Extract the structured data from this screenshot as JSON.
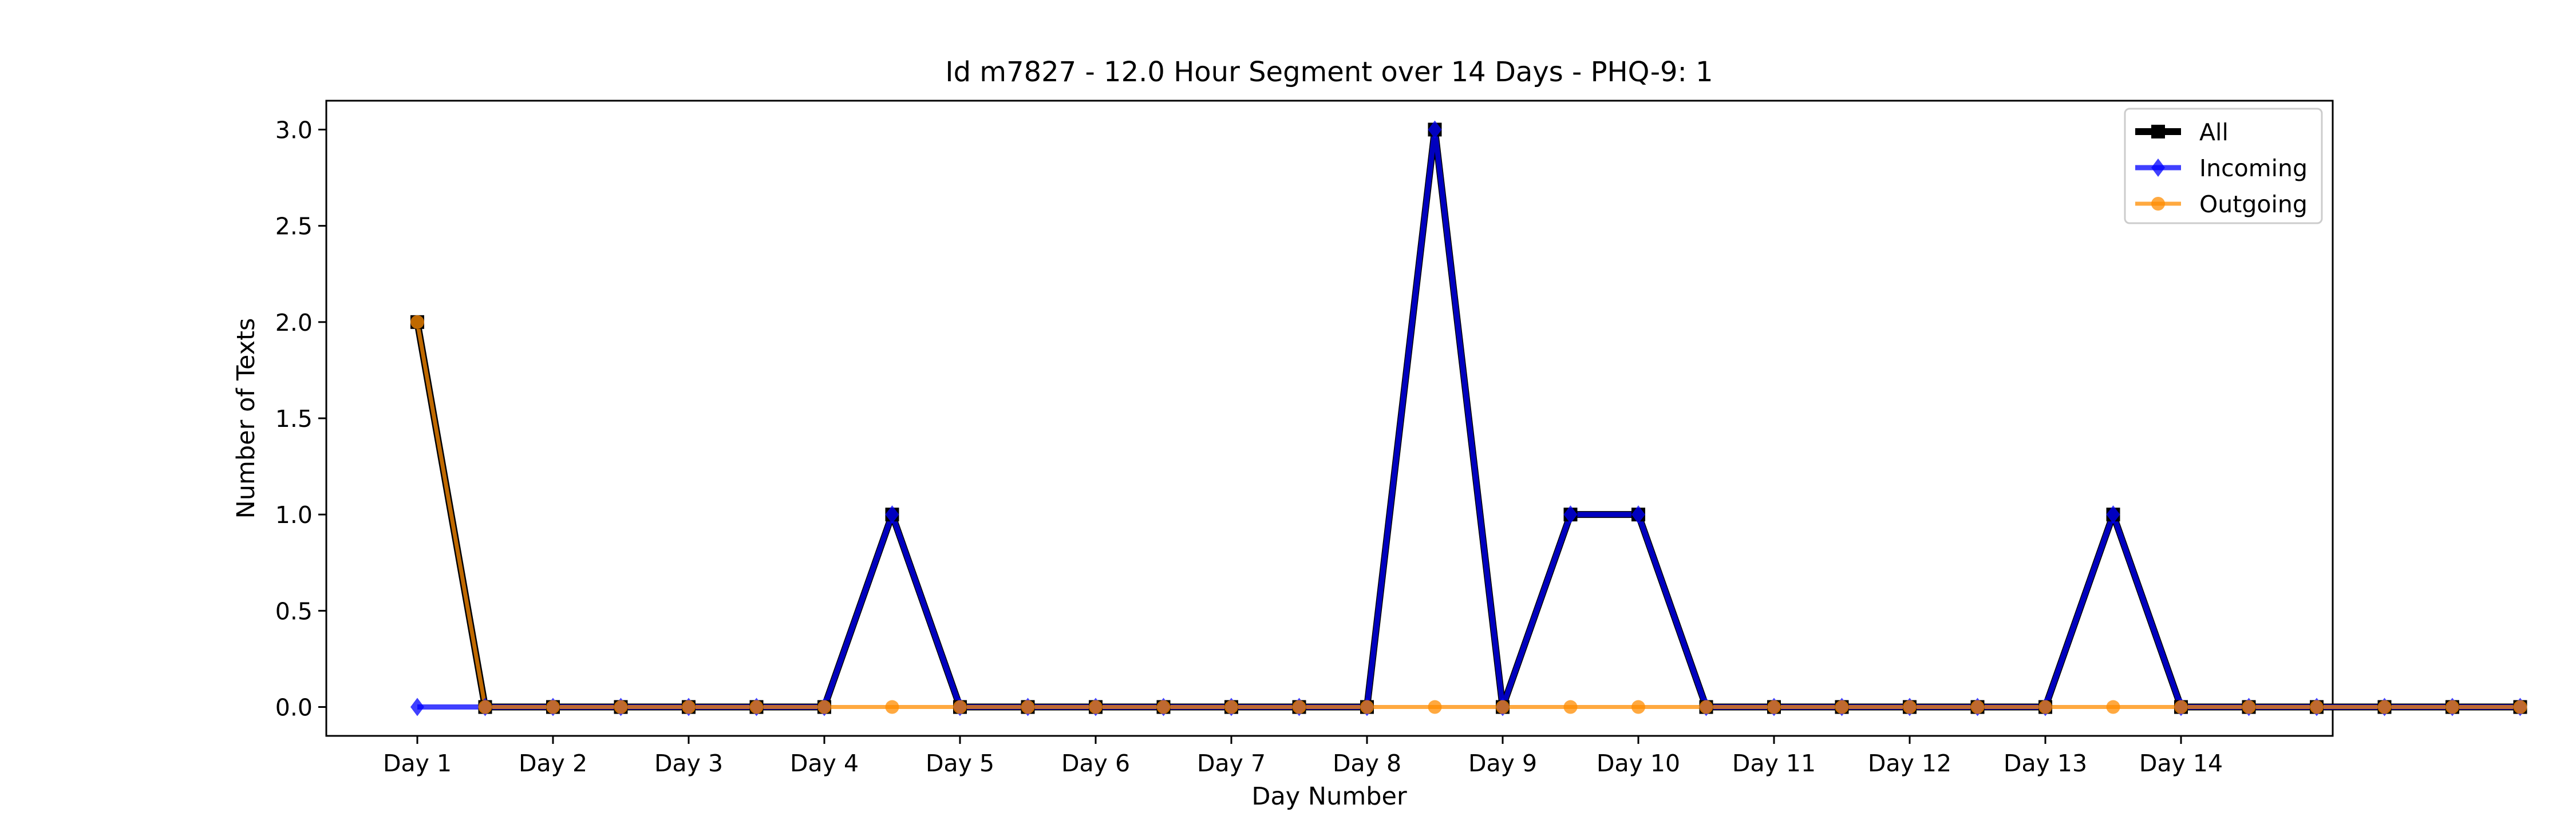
{
  "chart_data": {
    "type": "line",
    "title": "Id m7827 - 12.0 Hour Segment over 14 Days - PHQ-9: 1",
    "xlabel": "Day Number",
    "ylabel": "Number of Texts",
    "ylim": [
      -0.15,
      3.15
    ],
    "yticks": [
      "0.0",
      "0.5",
      "1.0",
      "1.5",
      "2.0",
      "2.5",
      "3.0"
    ],
    "ytick_values": [
      0,
      0.5,
      1.0,
      1.5,
      2.0,
      2.5,
      3.0
    ],
    "xtick_labels": [
      "Day 1",
      "Day 2",
      "Day 3",
      "Day 4",
      "Day 5",
      "Day 6",
      "Day 7",
      "Day 8",
      "Day 9",
      "Day 10",
      "Day 11",
      "Day 12",
      "Day 13",
      "Day 14"
    ],
    "grid": false,
    "legend_position": "top-right",
    "series": [
      {
        "name": "All",
        "color": "#000000",
        "marker": "square",
        "values": [
          2,
          0,
          0,
          0,
          0,
          0,
          0,
          1,
          0,
          0,
          0,
          0,
          0,
          0,
          0,
          3,
          0,
          1,
          1,
          0,
          0,
          0,
          0,
          0,
          0,
          1,
          0,
          0,
          0,
          0,
          0,
          0
        ]
      },
      {
        "name": "Incoming",
        "color": "#0000ff",
        "marker": "diamond",
        "values": [
          0,
          0,
          0,
          0,
          0,
          0,
          0,
          1,
          0,
          0,
          0,
          0,
          0,
          0,
          0,
          3,
          0,
          1,
          1,
          0,
          0,
          0,
          0,
          0,
          0,
          1,
          0,
          0,
          0,
          0,
          0,
          0
        ]
      },
      {
        "name": "Outgoing",
        "color": "#ff8c00",
        "marker": "circle",
        "values": [
          2,
          0,
          0,
          0,
          0,
          0,
          0,
          0,
          0,
          0,
          0,
          0,
          0,
          0,
          0,
          0,
          0,
          0,
          0,
          0,
          0,
          0,
          0,
          0,
          0,
          0,
          0,
          0,
          0,
          0,
          0,
          0
        ]
      }
    ]
  }
}
